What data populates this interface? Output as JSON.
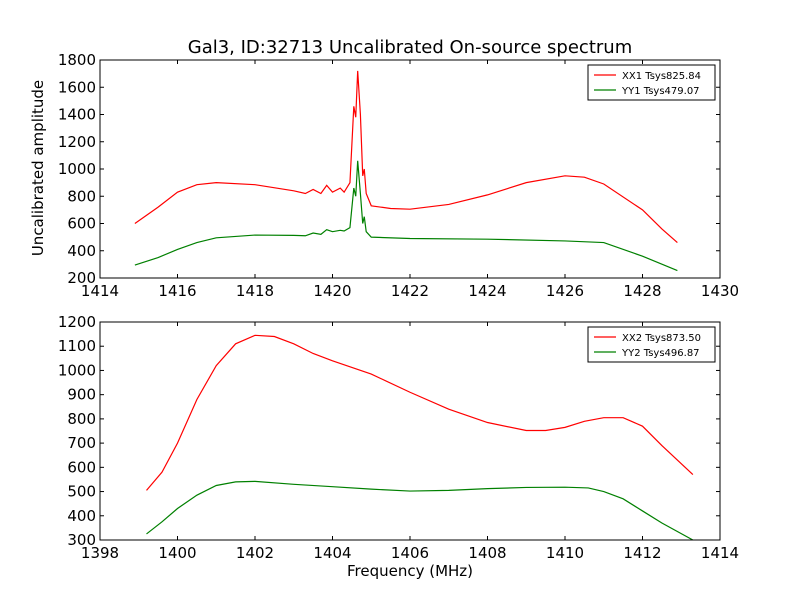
{
  "chart_data": [
    {
      "type": "line",
      "title": "Gal3, ID:32713 Uncalibrated On-source spectrum",
      "xlabel": "",
      "ylabel": "Uncalibrated amplitude",
      "xlim": [
        1414,
        1430
      ],
      "ylim": [
        200,
        1800
      ],
      "xticks": [
        1414,
        1416,
        1418,
        1420,
        1422,
        1424,
        1426,
        1428,
        1430
      ],
      "yticks": [
        200,
        400,
        600,
        800,
        1000,
        1200,
        1400,
        1600,
        1800
      ],
      "legend_position": "top-right",
      "series": [
        {
          "name": "XX1 Tsys825.84",
          "color": "#ff0000",
          "points": [
            [
              1414.9,
              600
            ],
            [
              1415.5,
              720
            ],
            [
              1416,
              830
            ],
            [
              1416.5,
              885
            ],
            [
              1417,
              900
            ],
            [
              1418,
              885
            ],
            [
              1419,
              840
            ],
            [
              1419.3,
              820
            ],
            [
              1419.5,
              850
            ],
            [
              1419.7,
              820
            ],
            [
              1419.85,
              880
            ],
            [
              1420,
              830
            ],
            [
              1420.2,
              860
            ],
            [
              1420.3,
              830
            ],
            [
              1420.45,
              900
            ],
            [
              1420.55,
              1460
            ],
            [
              1420.6,
              1380
            ],
            [
              1420.65,
              1720
            ],
            [
              1420.72,
              1400
            ],
            [
              1420.78,
              950
            ],
            [
              1420.82,
              1000
            ],
            [
              1420.87,
              820
            ],
            [
              1421,
              730
            ],
            [
              1421.5,
              710
            ],
            [
              1422,
              705
            ],
            [
              1423,
              740
            ],
            [
              1424,
              810
            ],
            [
              1425,
              900
            ],
            [
              1426,
              950
            ],
            [
              1426.5,
              940
            ],
            [
              1427,
              890
            ],
            [
              1428,
              700
            ],
            [
              1428.5,
              560
            ],
            [
              1428.9,
              460
            ]
          ]
        },
        {
          "name": "YY1 Tsys479.07",
          "color": "#008000",
          "points": [
            [
              1414.9,
              295
            ],
            [
              1415.5,
              350
            ],
            [
              1416,
              410
            ],
            [
              1416.5,
              460
            ],
            [
              1417,
              495
            ],
            [
              1418,
              515
            ],
            [
              1419,
              513
            ],
            [
              1419.3,
              510
            ],
            [
              1419.5,
              530
            ],
            [
              1419.7,
              520
            ],
            [
              1419.85,
              555
            ],
            [
              1420,
              540
            ],
            [
              1420.2,
              550
            ],
            [
              1420.3,
              545
            ],
            [
              1420.45,
              570
            ],
            [
              1420.55,
              860
            ],
            [
              1420.6,
              800
            ],
            [
              1420.65,
              1060
            ],
            [
              1420.72,
              820
            ],
            [
              1420.78,
              600
            ],
            [
              1420.82,
              650
            ],
            [
              1420.87,
              540
            ],
            [
              1421,
              500
            ],
            [
              1422,
              490
            ],
            [
              1424,
              485
            ],
            [
              1426,
              472
            ],
            [
              1427,
              460
            ],
            [
              1428,
              360
            ],
            [
              1428.9,
              255
            ]
          ]
        }
      ]
    },
    {
      "type": "line",
      "title": "",
      "xlabel": "Frequency (MHz)",
      "ylabel": "",
      "xlim": [
        1398,
        1414
      ],
      "ylim": [
        300,
        1200
      ],
      "xticks": [
        1398,
        1400,
        1402,
        1404,
        1406,
        1408,
        1410,
        1412,
        1414
      ],
      "yticks": [
        300,
        400,
        500,
        600,
        700,
        800,
        900,
        1000,
        1100,
        1200
      ],
      "legend_position": "top-right",
      "series": [
        {
          "name": "XX2 Tsys873.50",
          "color": "#ff0000",
          "points": [
            [
              1399.2,
              505
            ],
            [
              1399.6,
              580
            ],
            [
              1400,
              700
            ],
            [
              1400.5,
              880
            ],
            [
              1401,
              1020
            ],
            [
              1401.5,
              1110
            ],
            [
              1402,
              1145
            ],
            [
              1402.5,
              1140
            ],
            [
              1403,
              1110
            ],
            [
              1403.5,
              1070
            ],
            [
              1404,
              1040
            ],
            [
              1405,
              985
            ],
            [
              1406,
              910
            ],
            [
              1407,
              840
            ],
            [
              1408,
              785
            ],
            [
              1409,
              752
            ],
            [
              1409.5,
              752
            ],
            [
              1410,
              765
            ],
            [
              1410.5,
              790
            ],
            [
              1411,
              805
            ],
            [
              1411.5,
              805
            ],
            [
              1412,
              770
            ],
            [
              1412.5,
              690
            ],
            [
              1413.3,
              570
            ]
          ]
        },
        {
          "name": "YY2 Tsys496.87",
          "color": "#008000",
          "points": [
            [
              1399.2,
              325
            ],
            [
              1399.6,
              375
            ],
            [
              1400,
              430
            ],
            [
              1400.5,
              485
            ],
            [
              1401,
              525
            ],
            [
              1401.5,
              540
            ],
            [
              1402,
              542
            ],
            [
              1403,
              530
            ],
            [
              1404,
              520
            ],
            [
              1405,
              510
            ],
            [
              1406,
              502
            ],
            [
              1407,
              505
            ],
            [
              1408,
              512
            ],
            [
              1409,
              517
            ],
            [
              1410,
              518
            ],
            [
              1410.6,
              515
            ],
            [
              1411,
              500
            ],
            [
              1411.5,
              470
            ],
            [
              1412,
              420
            ],
            [
              1412.5,
              370
            ],
            [
              1413.3,
              300
            ]
          ]
        }
      ]
    }
  ]
}
